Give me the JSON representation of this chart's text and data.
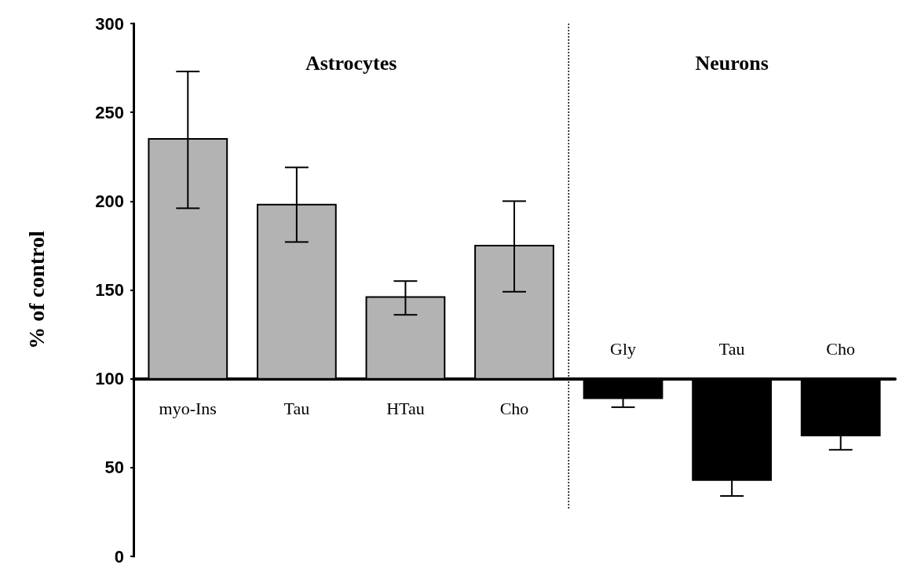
{
  "chart_data": {
    "type": "bar",
    "ylabel": "% of control",
    "categories": [
      "myo-Ins",
      "Tau",
      "HTau",
      "Cho",
      "Gly",
      "Tau",
      "Cho"
    ],
    "base": [
      100,
      100,
      100,
      100,
      100,
      100,
      100
    ],
    "values": [
      135,
      98,
      46,
      75,
      -11,
      -57,
      -32
    ],
    "colors": [
      "#b3b3b3",
      "#b3b3b3",
      "#b3b3b3",
      "#b3b3b3",
      "#000000",
      "#000000",
      "#000000"
    ],
    "errors": [
      [
        196,
        273
      ],
      [
        177,
        219
      ],
      [
        136,
        155
      ],
      [
        149,
        200
      ],
      [
        84,
        89
      ],
      [
        34,
        43
      ],
      [
        60,
        68
      ]
    ],
    "ylim": [
      0,
      300
    ],
    "yticks": [
      0,
      50,
      100,
      150,
      200,
      250,
      300
    ],
    "grid": false,
    "legend": false,
    "annotations": [
      "Astrocytes",
      "Neurons"
    ]
  }
}
